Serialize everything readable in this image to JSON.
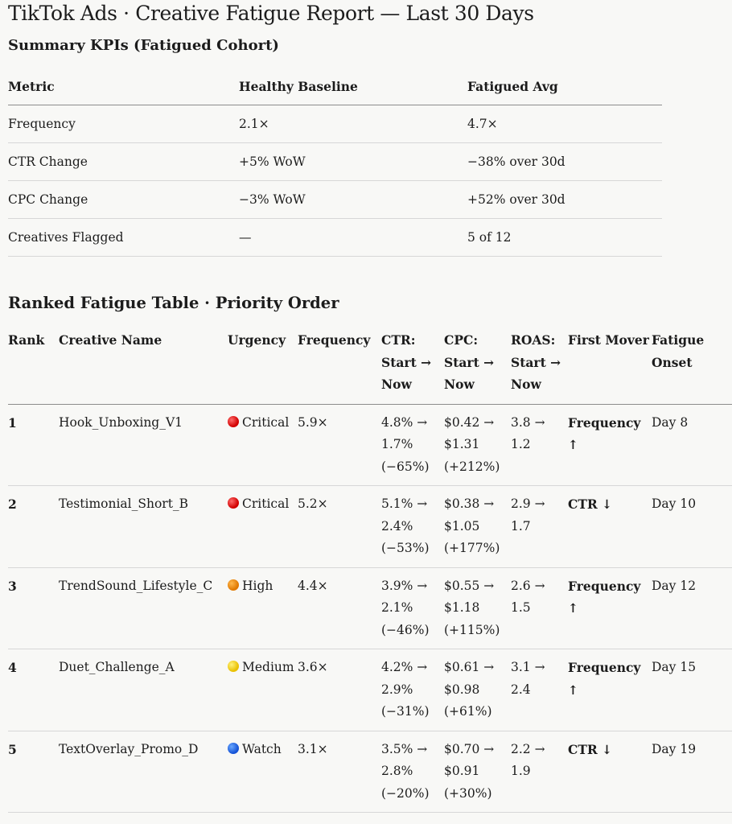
{
  "title": "TikTok Ads · Creative Fatigue Report — Last 30 Days",
  "kpi_section": {
    "heading": "Summary KPIs (Fatigued Cohort)",
    "columns": [
      "Metric",
      "Healthy Baseline",
      "Fatigued Avg"
    ],
    "rows": [
      {
        "metric": "Frequency",
        "baseline": "2.1×",
        "fatigued": "4.7×"
      },
      {
        "metric": "CTR Change",
        "baseline": "+5% WoW",
        "fatigued": "−38% over 30d"
      },
      {
        "metric": "CPC Change",
        "baseline": "−3% WoW",
        "fatigued": "+52% over 30d"
      },
      {
        "metric": "Creatives Flagged",
        "baseline": "—",
        "fatigued": "5 of 12"
      }
    ]
  },
  "rank_section": {
    "heading": "Ranked Fatigue Table · Priority Order",
    "columns": {
      "rank": "Rank",
      "name": "Creative Name",
      "urgency": "Urgency",
      "frequency": "Frequency",
      "ctr": "CTR: Start → Now",
      "cpc": "CPC: Start → Now",
      "roas": "ROAS: Start → Now",
      "mover": "First Mover",
      "onset": "Fatigue Onset"
    },
    "rows": [
      {
        "rank": "1",
        "name": "Hook_Unboxing_V1",
        "urgency_color": "#d10000",
        "urgency": "Critical",
        "frequency": "5.9×",
        "ctr": "4.8% → 1.7% (−65%)",
        "cpc": "$0.42 → $1.31 (+212%)",
        "roas": "3.8 → 1.2",
        "mover": "Frequency ↑",
        "onset": "Day 8"
      },
      {
        "rank": "2",
        "name": "Testimonial_Short_B",
        "urgency_color": "#d10000",
        "urgency": "Critical",
        "frequency": "5.2×",
        "ctr": "5.1% → 2.4% (−53%)",
        "cpc": "$0.38 → $1.05 (+177%)",
        "roas": "2.9 → 1.7",
        "mover": "CTR ↓",
        "onset": "Day 10"
      },
      {
        "rank": "3",
        "name": "TrendSound_Lifestyle_C",
        "urgency_color": "#e07800",
        "urgency": "High",
        "frequency": "4.4×",
        "ctr": "3.9% → 2.1% (−46%)",
        "cpc": "$0.55 → $1.18 (+115%)",
        "roas": "2.6 → 1.5",
        "mover": "Frequency ↑",
        "onset": "Day 12"
      },
      {
        "rank": "4",
        "name": "Duet_Challenge_A",
        "urgency_color": "#e9c000",
        "urgency": "Medium",
        "frequency": "3.6×",
        "ctr": "4.2% → 2.9% (−31%)",
        "cpc": "$0.61 → $0.98 (+61%)",
        "roas": "3.1 → 2.4",
        "mover": "Frequency ↑",
        "onset": "Day 15"
      },
      {
        "rank": "5",
        "name": "TextOverlay_Promo_D",
        "urgency_color": "#1553d6",
        "urgency": "Watch",
        "frequency": "3.1×",
        "ctr": "3.5% → 2.8% (−20%)",
        "cpc": "$0.70 → $0.91 (+30%)",
        "roas": "2.2 → 1.9",
        "mover": "CTR ↓",
        "onset": "Day 19"
      }
    ]
  }
}
